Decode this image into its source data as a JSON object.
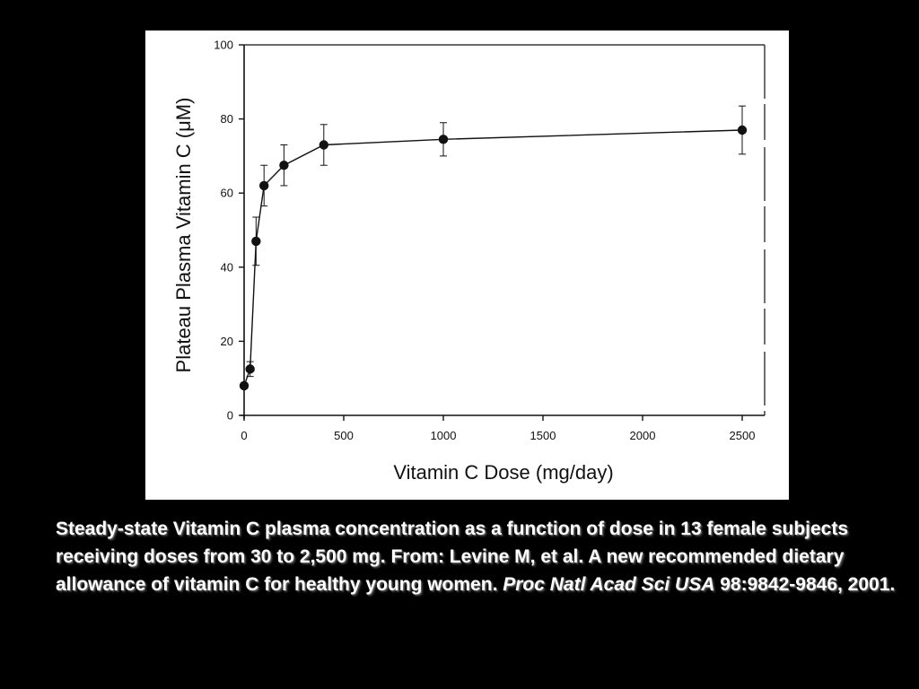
{
  "chart_data": {
    "type": "line",
    "xlabel": "Vitamin C Dose (mg/day)",
    "ylabel": "Plateau Plasma Vitamin C (μM)",
    "xlim": [
      0,
      2500
    ],
    "ylim": [
      0,
      100
    ],
    "xticks": [
      "0",
      "500",
      "1000",
      "1500",
      "2000",
      "2500"
    ],
    "yticks": [
      "0",
      "20",
      "40",
      "60",
      "80",
      "100"
    ],
    "grid": false,
    "marker": "filled-circle",
    "error_bars": true,
    "series": [
      {
        "x": [
          0,
          30,
          60,
          100,
          200,
          400,
          1000,
          2500
        ],
        "y": [
          8,
          12.5,
          47,
          62,
          67.5,
          73,
          74.5,
          77
        ],
        "error": [
          0,
          2,
          6.5,
          5.5,
          5.5,
          5.5,
          4.5,
          6.5
        ]
      }
    ]
  },
  "caption": {
    "main": "Steady-state Vitamin C plasma concentration as a function of dose in 13 female subjects receiving doses from 30 to 2,500 mg.  From: Levine M, et al. A new recommended dietary allowance of vitamin C for healthy young women. ",
    "journal": "Proc Natl Acad Sci USA",
    "citation": " 98:9842-9846, 2001."
  },
  "colors": {
    "background": "#000000",
    "panel": "#ffffff",
    "ink": "#111111",
    "caption_text": "#ffffff"
  }
}
